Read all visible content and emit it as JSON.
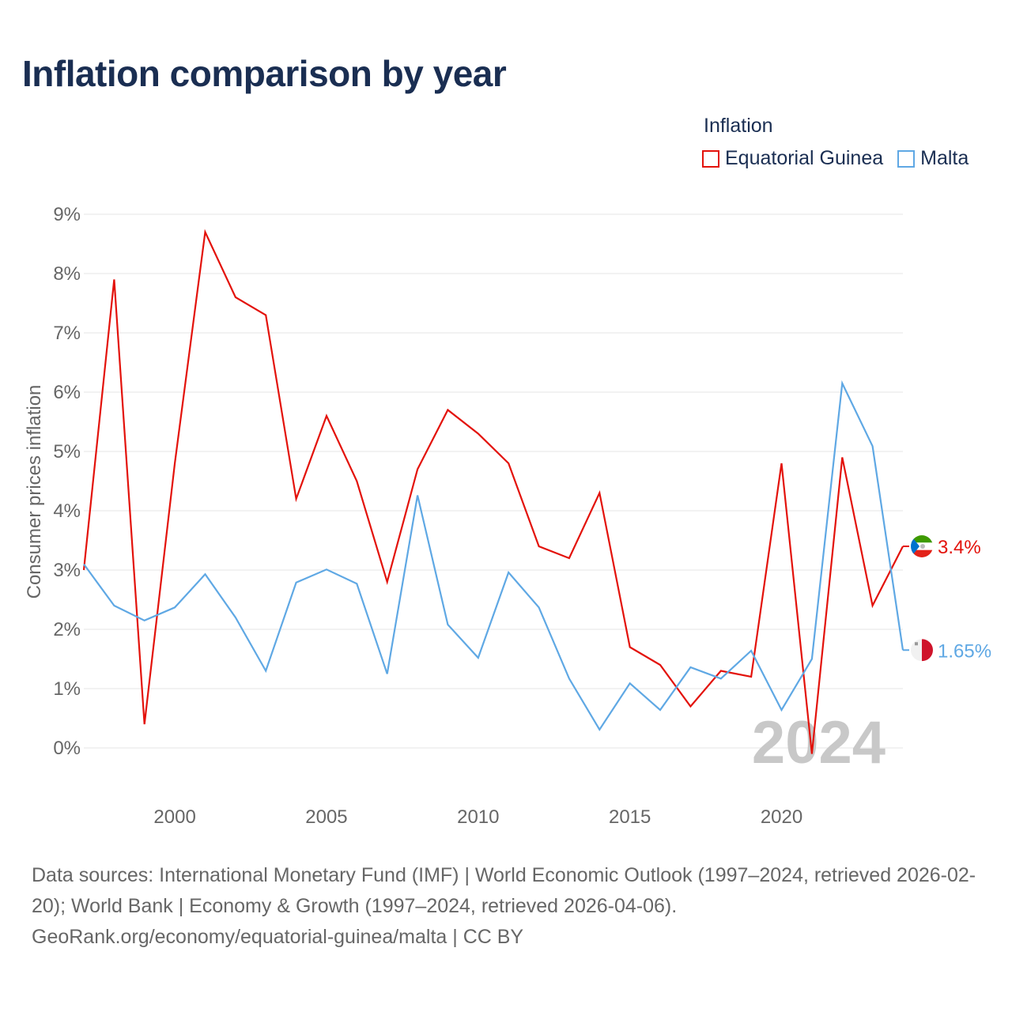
{
  "title": "Inflation comparison by year",
  "legend": {
    "title": "Inflation",
    "items": [
      {
        "label": "Equatorial Guinea",
        "color": "#e3120b"
      },
      {
        "label": "Malta",
        "color": "#5fa8e4"
      }
    ]
  },
  "watermark_year": "2024",
  "footer": {
    "sources": "Data sources: International Monetary Fund (IMF) | World Economic Outlook (1997–2024, retrieved 2026-02-20); World Bank | Economy & Growth (1997–2024, retrieved 2026-04-06).",
    "credit": "GeoRank.org/economy/equatorial-guinea/malta | CC BY"
  },
  "chart_data": {
    "type": "line",
    "title": "Inflation comparison by year",
    "ylabel": "Consumer prices inflation",
    "xlabel": "",
    "ylim": [
      -0.8,
      9
    ],
    "xlim": [
      1997,
      2024
    ],
    "yticks": [
      0,
      1,
      2,
      3,
      4,
      5,
      6,
      7,
      8,
      9
    ],
    "ytick_labels": [
      "0%",
      "1%",
      "2%",
      "3%",
      "4%",
      "5%",
      "6%",
      "7%",
      "8%",
      "9%"
    ],
    "xticks": [
      2000,
      2005,
      2010,
      2015,
      2020
    ],
    "xtick_labels": [
      "2000",
      "2005",
      "2010",
      "2015",
      "2020"
    ],
    "x": [
      1997,
      1998,
      1999,
      2000,
      2001,
      2002,
      2003,
      2004,
      2005,
      2006,
      2007,
      2008,
      2009,
      2010,
      2011,
      2012,
      2013,
      2014,
      2015,
      2016,
      2017,
      2018,
      2019,
      2020,
      2021,
      2022,
      2023,
      2024
    ],
    "series": [
      {
        "name": "Equatorial Guinea",
        "color": "#e3120b",
        "end_label": "3.4%",
        "values": [
          3.0,
          7.9,
          0.4,
          4.8,
          8.7,
          7.6,
          7.3,
          4.2,
          5.6,
          4.5,
          2.8,
          4.7,
          5.7,
          5.3,
          4.8,
          3.4,
          3.2,
          4.3,
          1.7,
          1.4,
          0.7,
          1.3,
          1.2,
          4.8,
          -0.1,
          4.9,
          2.4,
          3.4
        ]
      },
      {
        "name": "Malta",
        "color": "#5fa8e4",
        "end_label": "1.65%",
        "values": [
          3.1,
          2.4,
          2.15,
          2.37,
          2.93,
          2.2,
          1.3,
          2.79,
          3.01,
          2.77,
          1.25,
          4.26,
          2.08,
          1.52,
          2.96,
          2.37,
          1.17,
          0.31,
          1.09,
          0.64,
          1.36,
          1.17,
          1.64,
          0.64,
          1.5,
          6.15,
          5.09,
          1.65
        ]
      }
    ],
    "grid": true
  }
}
